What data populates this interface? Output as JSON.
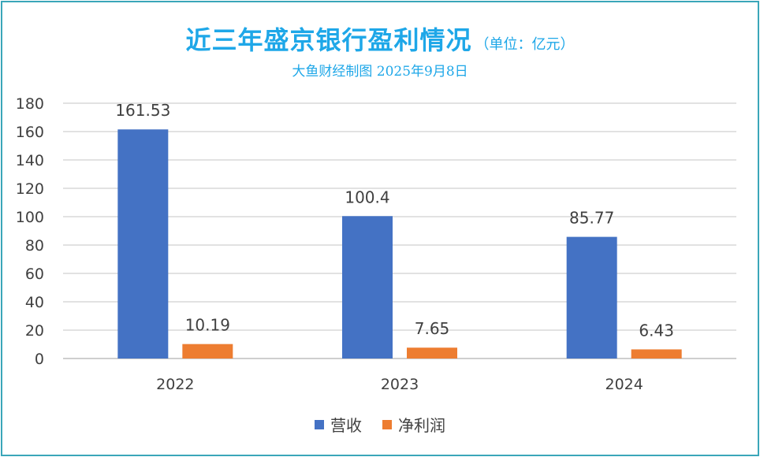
{
  "chart_data": {
    "type": "bar",
    "title": "近三年盛京银行盈利情况",
    "title_unit": "（单位：亿元）",
    "subtitle": "大鱼财经制图 2025年9月8日",
    "categories": [
      "2022",
      "2023",
      "2024"
    ],
    "series": [
      {
        "name": "营收",
        "values": [
          161.53,
          100.4,
          85.77
        ],
        "labels": [
          "161.53",
          "100.4",
          "85.77"
        ],
        "color": "#4472c4"
      },
      {
        "name": "净利润",
        "values": [
          10.19,
          7.65,
          6.43
        ],
        "labels": [
          "10.19",
          "7.65",
          "6.43"
        ],
        "color": "#ed7d31"
      }
    ],
    "ylim": [
      0,
      180
    ],
    "yticks": [
      0,
      20,
      40,
      60,
      80,
      100,
      120,
      140,
      160,
      180
    ],
    "grid": true,
    "legend_position": "bottom",
    "border_color": "#3aa6b9",
    "title_color": "#1ea7e8"
  }
}
